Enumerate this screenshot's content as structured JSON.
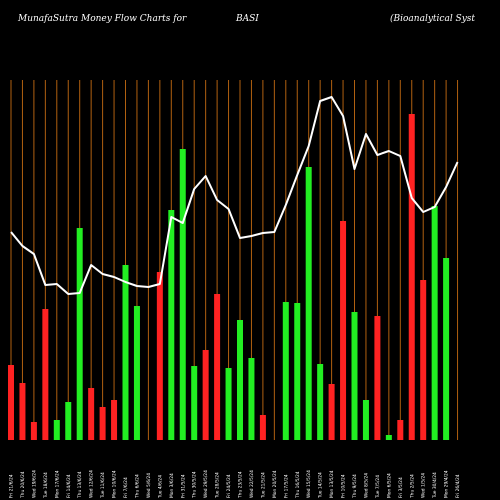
{
  "header": {
    "left": "MunafaSutra  Money Flow  Charts for",
    "symbol": "BASI",
    "company": "(Bioanalytical Syst"
  },
  "chart_data": {
    "type": "bar",
    "bar_colors": {
      "up": "#22ee22",
      "down": "#ff2222"
    },
    "grid_color": "#b06010",
    "line_color": "#ffffff",
    "x": [
      "Fri 21 Jun",
      "Thu 20 Jun",
      "Wed 19 Jun",
      "Tue 18 Jun",
      "Mon 17 Jun",
      "Fri 14 Jun",
      "Thu 13 Jun",
      "Wed 12 Jun",
      "Tue 11 Jun",
      "Mon 10 Jun",
      "Fri 07 Jun",
      "Thu 06 Jun",
      "Wed 05 Jun",
      "Tue 04 Jun",
      "Mon 03 Jun",
      "Fri 31 May",
      "Thu 30 May",
      "Wed 29 May",
      "Tue 28 May",
      "Fri 24 May",
      "Thu 23 May",
      "Wed 22 May",
      "Tue 21 May",
      "Mon 20 May",
      "Fri 17 May",
      "Thu 16 May",
      "Wed 15 May",
      "Tue 14 May",
      "Mon 13 May",
      "Fri 10 May",
      "Thu 09 May",
      "Wed 08 May",
      "Tue 07 May",
      "Mon 06 May",
      "Fri 03 May",
      "Thu 02 May",
      "Wed 01 May",
      "Tue 30 Apr",
      "Mon 29 Apr",
      "Fri 26 Apr"
    ],
    "x_tick_labels": [
      "Fri 21/6/24",
      "Thu 20/6/24",
      "Wed 19/6/24",
      "Tue 18/6/24",
      "Mon 17/6/24",
      "Fri 14/6/24",
      "Thu 13/6/24",
      "Wed 12/6/24",
      "Tue 11/6/24",
      "Mon 10/6/24",
      "Fri 7/6/24",
      "Thu 6/6/24",
      "Wed 5/6/24",
      "Tue 4/6/24",
      "Mon 3/6/24",
      "Fri 31/5/24",
      "Thu 30/5/24",
      "Wed 29/5/24",
      "Tue 28/5/24",
      "Fri 24/5/24",
      "Thu 23/5/24",
      "Wed 22/5/24",
      "Tue 21/5/24",
      "Mon 20/5/24",
      "Fri 17/5/24",
      "Thu 16/5/24",
      "Wed 15/5/24",
      "Tue 14/5/24",
      "Mon 13/5/24",
      "Fri 10/5/24",
      "Thu 9/5/24",
      "Wed 8/5/24",
      "Tue 7/5/24",
      "Mon 6/5/24",
      "Fri 3/5/24",
      "Thu 2/5/24",
      "Wed 1/5/24",
      "Tue 30/4/24",
      "Mon 29/4/24",
      "Fri 26/4/24"
    ],
    "series": [
      {
        "values": [
          75,
          57,
          18,
          131,
          20,
          38,
          212,
          52,
          33,
          40,
          175,
          134,
          0,
          168,
          230,
          291,
          74,
          90,
          146,
          72,
          120,
          82,
          25,
          0,
          138,
          137,
          273,
          76,
          56,
          219,
          128,
          40,
          124,
          5,
          20,
          326,
          160,
          234,
          182,
          0
        ],
        "directions": [
          "down",
          "down",
          "down",
          "down",
          "up",
          "up",
          "up",
          "down",
          "down",
          "down",
          "up",
          "up",
          "up",
          "down",
          "up",
          "up",
          "up",
          "down",
          "down",
          "up",
          "up",
          "up",
          "down",
          "down",
          "up",
          "up",
          "up",
          "up",
          "down",
          "down",
          "up",
          "up",
          "down",
          "up",
          "down",
          "down",
          "down",
          "up",
          "up",
          "up"
        ]
      },
      {
        "values": [
          208,
          194,
          186,
          155,
          156,
          146,
          147,
          175,
          166,
          163,
          158,
          154,
          153,
          156,
          223,
          217,
          251,
          264,
          240,
          231,
          202,
          204,
          207,
          208,
          235,
          265,
          294,
          339,
          343,
          324,
          271,
          306,
          285,
          289,
          284,
          242,
          228,
          233,
          253,
          278
        ]
      }
    ],
    "ylim": [
      0,
      440
    ],
    "grid": true,
    "title": "MunafaSutra Money Flow Charts for BASI (Bioanalytical Syst"
  }
}
